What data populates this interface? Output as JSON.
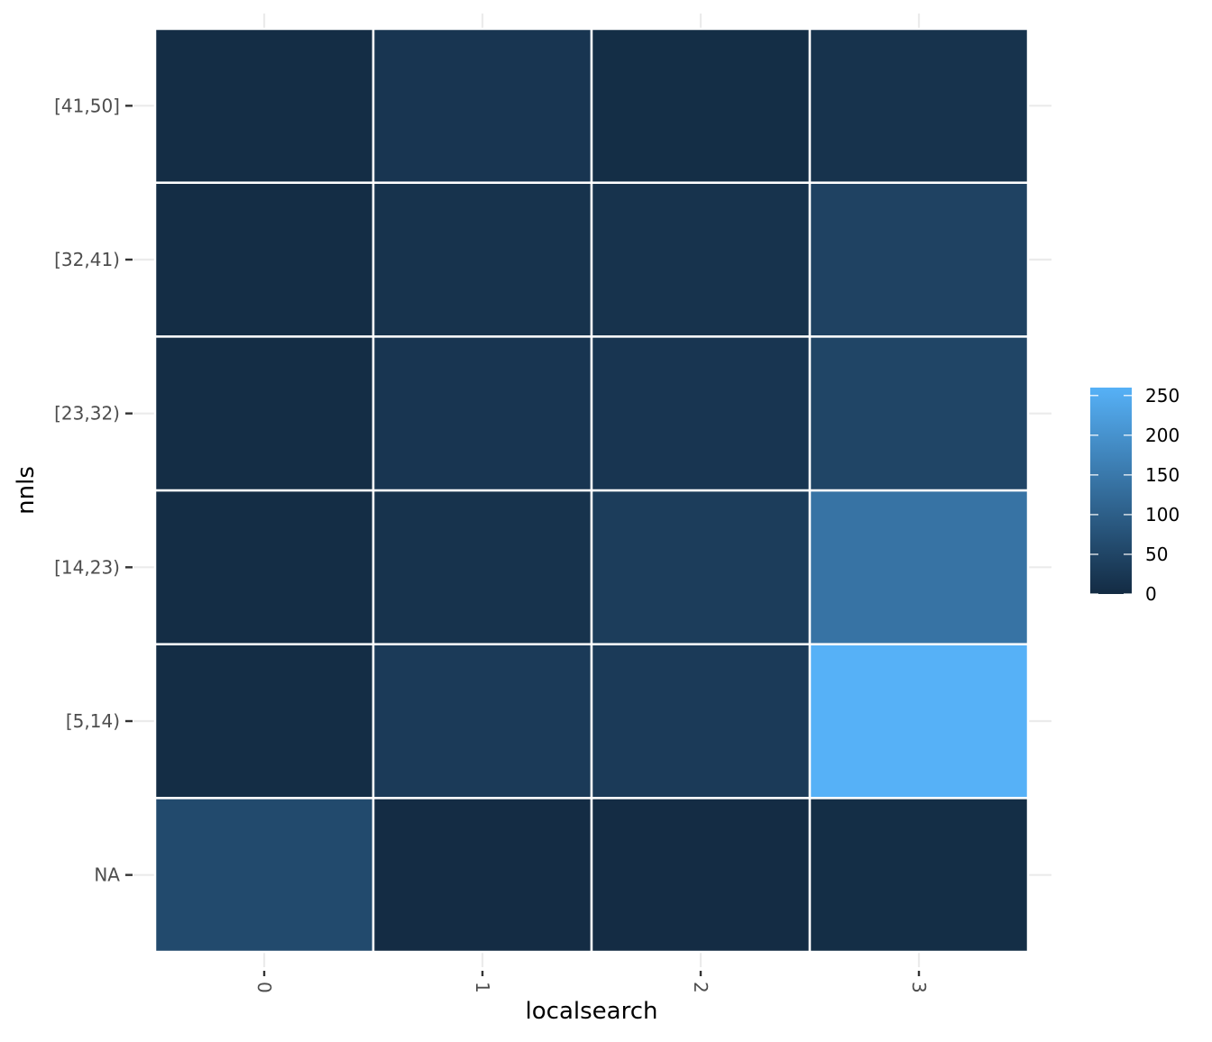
{
  "chart_data": {
    "type": "heatmap",
    "xlabel": "localsearch",
    "ylabel": "nnls",
    "x_categories": [
      "0",
      "1",
      "2",
      "3"
    ],
    "y_categories": [
      "NA",
      "[5,14)",
      "[14,23)",
      "[23,32)",
      "[32,41)",
      "[41,50]"
    ],
    "values": [
      [
        60,
        2,
        2,
        5
      ],
      [
        3,
        30,
        30,
        260
      ],
      [
        3,
        15,
        35,
        140
      ],
      [
        3,
        20,
        20,
        50
      ],
      [
        3,
        15,
        15,
        45
      ],
      [
        3,
        20,
        5,
        15
      ]
    ],
    "color_scale": {
      "low_color": "#132B43",
      "high_color": "#56B1F7",
      "min": 0,
      "max": 260,
      "legend_ticks": [
        0,
        50,
        100,
        150,
        200,
        250
      ]
    },
    "grid": true,
    "legend_position": "right"
  }
}
